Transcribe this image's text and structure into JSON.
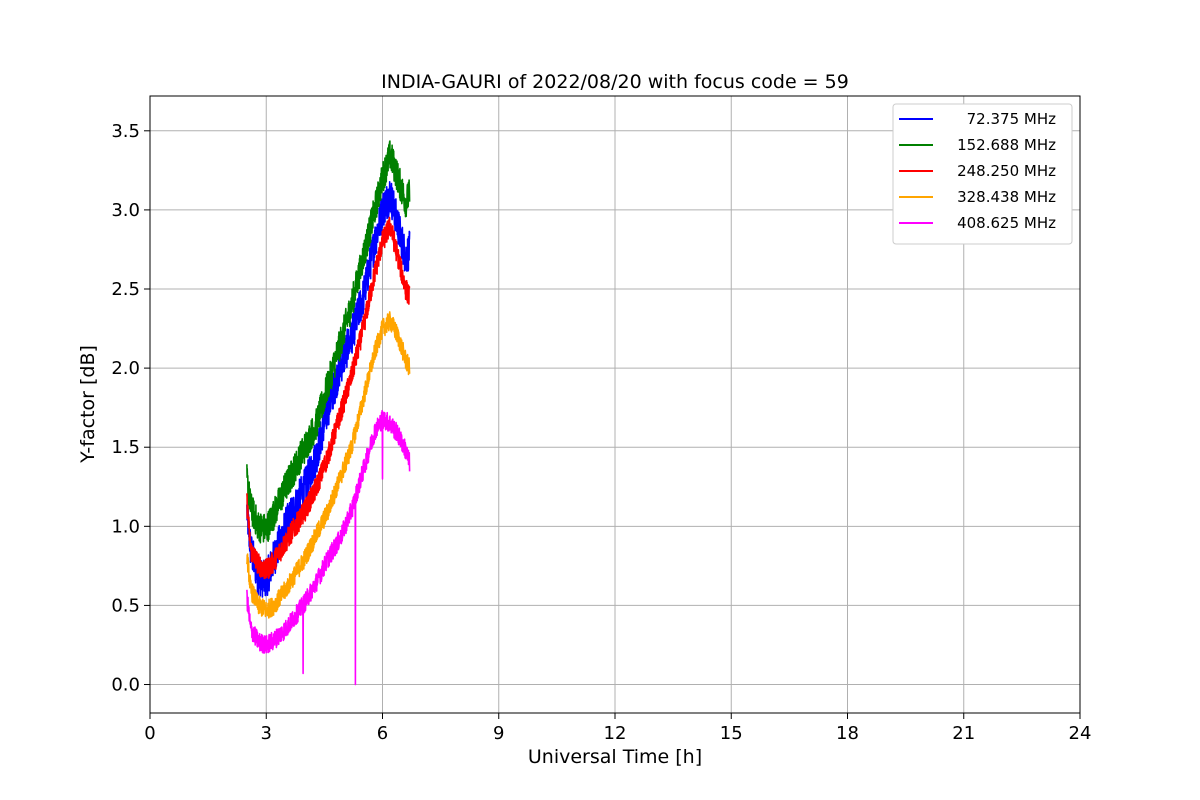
{
  "chart_data": {
    "type": "line",
    "title": "INDIA-GAURI of 2022/08/20 with focus code = 59",
    "xlabel": "Universal Time [h]",
    "ylabel": "Y-factor [dB]",
    "xlim": [
      0,
      24
    ],
    "ylim": [
      -0.18,
      3.72
    ],
    "xticks": [
      0,
      3,
      6,
      9,
      12,
      15,
      18,
      21,
      24
    ],
    "xtick_labels": [
      "0",
      "3",
      "6",
      "9",
      "12",
      "15",
      "18",
      "21",
      "24"
    ],
    "yticks": [
      0.0,
      0.5,
      1.0,
      1.5,
      2.0,
      2.5,
      3.0,
      3.5
    ],
    "ytick_labels": [
      "0.0",
      "0.5",
      "1.0",
      "1.5",
      "2.0",
      "2.5",
      "3.0",
      "3.5"
    ],
    "grid": true,
    "legend_position": "top-right",
    "series": [
      {
        "name": "72.375 MHz",
        "color": "#0000ff",
        "x": [
          2.5,
          2.6,
          2.8,
          3.0,
          3.2,
          3.5,
          3.8,
          4.0,
          4.3,
          4.6,
          4.9,
          5.2,
          5.5,
          5.8,
          6.0,
          6.2,
          6.4,
          6.6,
          6.7
        ],
        "y": [
          1.1,
          0.85,
          0.68,
          0.66,
          0.8,
          1.0,
          1.15,
          1.25,
          1.45,
          1.75,
          2.0,
          2.2,
          2.45,
          2.8,
          3.0,
          3.1,
          2.9,
          2.7,
          2.75
        ],
        "noise": 0.12
      },
      {
        "name": "152.688 MHz",
        "color": "#008000",
        "x": [
          2.5,
          2.6,
          2.8,
          3.0,
          3.2,
          3.5,
          3.8,
          4.0,
          4.3,
          4.6,
          4.9,
          5.2,
          5.5,
          5.8,
          6.0,
          6.2,
          6.4,
          6.6,
          6.7
        ],
        "y": [
          1.3,
          1.12,
          1.0,
          0.98,
          1.08,
          1.25,
          1.4,
          1.5,
          1.65,
          1.9,
          2.15,
          2.4,
          2.7,
          3.0,
          3.2,
          3.35,
          3.2,
          3.05,
          3.1
        ],
        "noise": 0.1
      },
      {
        "name": "248.250 MHz",
        "color": "#ff0000",
        "x": [
          2.5,
          2.6,
          2.8,
          3.0,
          3.2,
          3.5,
          3.8,
          4.0,
          4.3,
          4.6,
          4.9,
          5.2,
          5.5,
          5.8,
          6.0,
          6.2,
          6.4,
          6.6,
          6.7
        ],
        "y": [
          1.15,
          0.85,
          0.76,
          0.72,
          0.78,
          0.9,
          1.02,
          1.1,
          1.25,
          1.45,
          1.7,
          1.95,
          2.25,
          2.6,
          2.8,
          2.9,
          2.7,
          2.5,
          2.45
        ],
        "noise": 0.07
      },
      {
        "name": "328.438 MHz",
        "color": "#ffa500",
        "x": [
          2.5,
          2.6,
          2.8,
          3.0,
          3.2,
          3.5,
          3.8,
          4.0,
          4.3,
          4.6,
          4.9,
          5.2,
          5.5,
          5.8,
          6.0,
          6.2,
          6.4,
          6.6,
          6.7
        ],
        "y": [
          0.82,
          0.6,
          0.5,
          0.47,
          0.5,
          0.6,
          0.72,
          0.8,
          0.95,
          1.1,
          1.3,
          1.5,
          1.8,
          2.1,
          2.25,
          2.3,
          2.2,
          2.05,
          2.0
        ],
        "noise": 0.06
      },
      {
        "name": "408.625 MHz",
        "color": "#ff00ff",
        "x": [
          2.5,
          2.6,
          2.8,
          3.0,
          3.2,
          3.5,
          3.8,
          4.0,
          4.3,
          4.6,
          4.9,
          5.2,
          5.5,
          5.8,
          6.0,
          6.2,
          6.4,
          6.6,
          6.7
        ],
        "y": [
          0.55,
          0.35,
          0.27,
          0.25,
          0.28,
          0.35,
          0.45,
          0.52,
          0.65,
          0.8,
          0.92,
          1.1,
          1.35,
          1.6,
          1.68,
          1.65,
          1.58,
          1.48,
          1.4
        ],
        "noise": 0.06,
        "spikes": [
          [
            3.95,
            0.07
          ],
          [
            5.3,
            0.0
          ],
          [
            6.0,
            1.3
          ]
        ]
      }
    ]
  }
}
